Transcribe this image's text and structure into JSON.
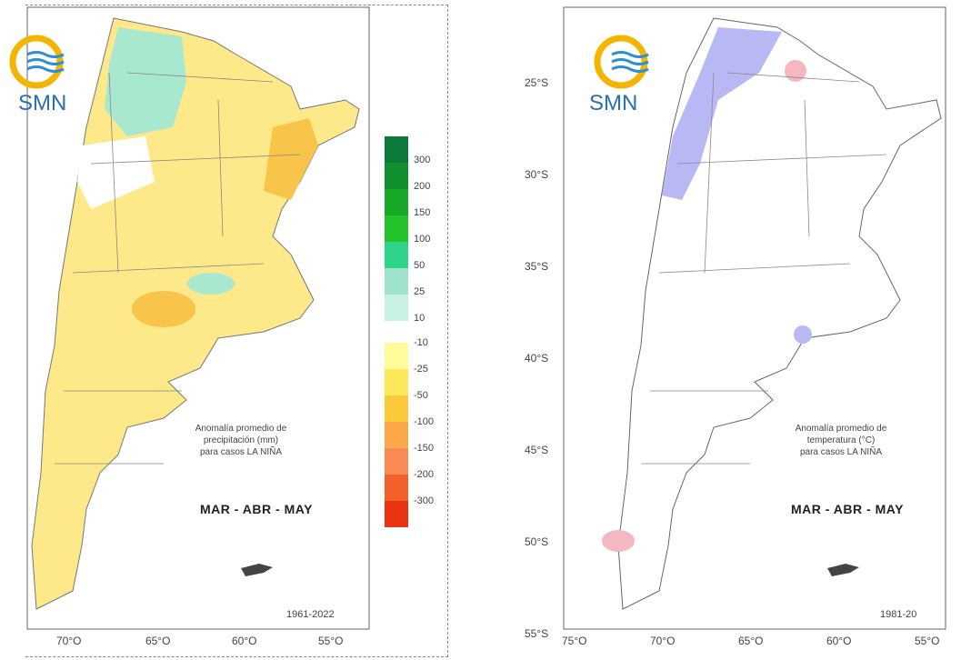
{
  "precip_map": {
    "logo_text": "SMN",
    "annotation": [
      "Anomalía promedio de",
      "precipitación (mm)",
      "para casos LA NIÑA"
    ],
    "season": "MAR - ABR - MAY",
    "period": "1961-2022",
    "lon_labels": [
      "70°O",
      "65°O",
      "60°O",
      "55°O"
    ],
    "legend": {
      "labels": [
        "300",
        "200",
        "150",
        "100",
        "50",
        "25",
        "10",
        "-10",
        "-25",
        "-50",
        "-100",
        "-150",
        "-200",
        "-300"
      ],
      "colors": [
        "#0b7a3a",
        "#0f8f2e",
        "#18a828",
        "#23c12a",
        "#2ed38a",
        "#9fe3cc",
        "#c6f1e4",
        "#fffc9c",
        "#fde75a",
        "#fcc93a",
        "#fba84a",
        "#f88a55",
        "#f4602c",
        "#e83412"
      ]
    }
  },
  "temp_map": {
    "logo_text": "SMN",
    "annotation": [
      "Anomalía promedio de",
      "temperatura (°C)",
      "para casos LA NIÑA"
    ],
    "season": "MAR - ABR - MAY",
    "period": "1981-20",
    "lat_labels": [
      "25°S",
      "30°S",
      "35°S",
      "40°S",
      "45°S",
      "50°S",
      "55°S"
    ],
    "lon_labels": [
      "75°O",
      "70°O",
      "65°O",
      "60°O",
      "55°O"
    ]
  },
  "colors": {
    "logo_yellow": "#f5b400",
    "logo_blue": "#2a8fd6",
    "cold": "#b8b8f5",
    "warm": "#f5b8c0"
  }
}
